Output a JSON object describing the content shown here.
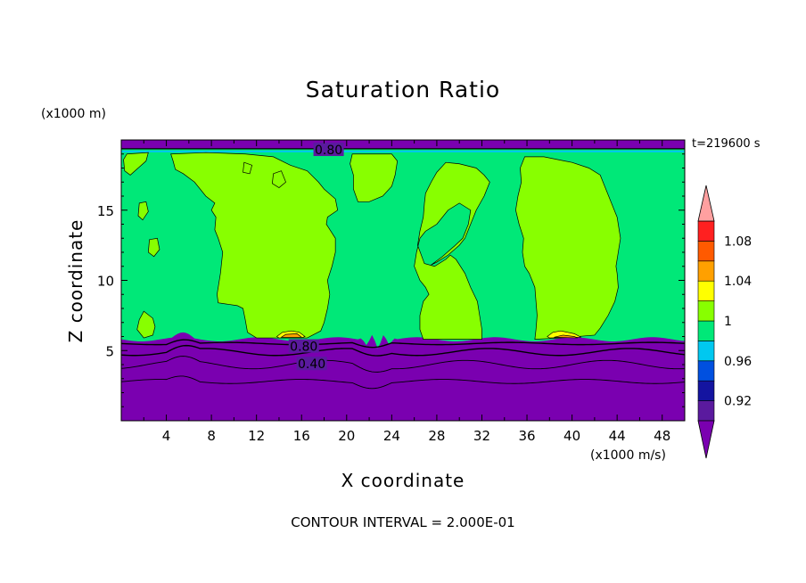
{
  "chart_data": {
    "type": "heatmap",
    "title": "Saturation Ratio",
    "xlabel": "X coordinate",
    "ylabel": "Z coordinate",
    "x_unit": "(x1000 m/s)",
    "y_unit": "(x1000 m)",
    "time_label": "t=219600 s",
    "footer": "CONTOUR INTERVAL = 2.000E-01",
    "xlim": [
      0,
      50
    ],
    "ylim": [
      0,
      20
    ],
    "x_ticks": [
      4,
      8,
      12,
      16,
      20,
      24,
      28,
      32,
      36,
      40,
      44,
      48
    ],
    "y_ticks": [
      5,
      10,
      15
    ],
    "colorbar": {
      "levels": [
        0.9,
        0.92,
        0.94,
        0.96,
        0.98,
        1.0,
        1.02,
        1.04,
        1.06,
        1.08,
        1.1
      ],
      "labels": [
        "0.92",
        "0.96",
        "1",
        "1.04",
        "1.08"
      ],
      "label_values": [
        0.92,
        0.96,
        1.0,
        1.04,
        1.08
      ],
      "colors": [
        "#5a1a9e",
        "#1414a0",
        "#0050e0",
        "#00c8f0",
        "#00e878",
        "#88ff00",
        "#ffff00",
        "#ffa000",
        "#ff5a00",
        "#ff2020"
      ],
      "under_color": "#7a00b0",
      "over_color": "#ffa0a0"
    },
    "contour_labels": [
      {
        "text": "0.80",
        "x": 18.4,
        "z": 19.3
      },
      {
        "text": "0.80",
        "x": 16.2,
        "z": 5.3
      },
      {
        "text": "0.40",
        "x": 16.9,
        "z": 4.05
      }
    ],
    "bands": {
      "purple_top": 5.8,
      "top_strip_bottom": 19.5
    },
    "regions": [
      {
        "level": 1.0,
        "poly": [
          [
            4.4,
            19.0
          ],
          [
            7.5,
            19.1
          ],
          [
            11.0,
            19.0
          ],
          [
            13.5,
            18.8
          ],
          [
            15.0,
            18.2
          ],
          [
            16.5,
            17.8
          ],
          [
            17.5,
            17.0
          ],
          [
            18.0,
            16.5
          ],
          [
            19.0,
            15.8
          ],
          [
            19.2,
            15.0
          ],
          [
            18.3,
            14.5
          ],
          [
            18.2,
            14.0
          ],
          [
            19.0,
            13.0
          ],
          [
            19.0,
            12.0
          ],
          [
            18.7,
            11.0
          ],
          [
            18.3,
            10.0
          ],
          [
            18.5,
            9.0
          ],
          [
            18.3,
            8.0
          ],
          [
            18.0,
            7.0
          ],
          [
            17.7,
            6.4
          ],
          [
            16.5,
            5.9
          ],
          [
            12.0,
            5.9
          ],
          [
            11.2,
            6.3
          ],
          [
            11.0,
            7.2
          ],
          [
            10.8,
            8.0
          ],
          [
            10.3,
            8.2
          ],
          [
            8.6,
            8.4
          ],
          [
            8.5,
            9.0
          ],
          [
            8.8,
            10.5
          ],
          [
            9.0,
            12.0
          ],
          [
            8.6,
            13.0
          ],
          [
            8.3,
            13.6
          ],
          [
            8.4,
            14.5
          ],
          [
            8.0,
            15.0
          ],
          [
            8.3,
            15.5
          ],
          [
            7.5,
            16.0
          ],
          [
            6.5,
            17.0
          ],
          [
            5.5,
            17.6
          ],
          [
            4.8,
            17.9
          ],
          [
            4.6,
            18.5
          ]
        ]
      },
      {
        "level": 1.0,
        "poly": [
          [
            20.5,
            19.0
          ],
          [
            24.0,
            19.0
          ],
          [
            24.5,
            18.5
          ],
          [
            24.3,
            17.5
          ],
          [
            24.0,
            16.7
          ],
          [
            23.2,
            16.0
          ],
          [
            22.0,
            15.6
          ],
          [
            21.0,
            15.6
          ],
          [
            20.6,
            16.5
          ],
          [
            20.6,
            17.5
          ],
          [
            20.3,
            18.3
          ]
        ]
      },
      {
        "level": 1.0,
        "poly": [
          [
            28.8,
            18.4
          ],
          [
            30.0,
            18.3
          ],
          [
            31.5,
            18.0
          ],
          [
            32.2,
            17.5
          ],
          [
            32.7,
            17.0
          ],
          [
            32.2,
            16.0
          ],
          [
            31.5,
            15.0
          ],
          [
            31.0,
            14.0
          ],
          [
            30.5,
            13.0
          ],
          [
            30.0,
            12.5
          ],
          [
            29.0,
            11.8
          ],
          [
            28.0,
            11.3
          ],
          [
            27.5,
            11.1
          ],
          [
            28.5,
            11.7
          ],
          [
            29.5,
            12.4
          ],
          [
            30.3,
            13.0
          ],
          [
            30.8,
            14.0
          ],
          [
            31.0,
            15.0
          ],
          [
            30.0,
            15.5
          ],
          [
            29.0,
            15.0
          ],
          [
            28.0,
            14.0
          ],
          [
            27.0,
            13.5
          ],
          [
            26.5,
            13.0
          ],
          [
            26.2,
            12.0
          ],
          [
            26.0,
            11.0
          ],
          [
            26.5,
            10.0
          ],
          [
            27.0,
            9.5
          ],
          [
            27.3,
            9.0
          ],
          [
            26.8,
            8.5
          ],
          [
            26.5,
            7.5
          ],
          [
            26.5,
            6.5
          ],
          [
            26.8,
            5.8
          ],
          [
            32.0,
            5.8
          ],
          [
            32.0,
            6.5
          ],
          [
            31.8,
            7.5
          ],
          [
            31.6,
            8.5
          ],
          [
            31.0,
            9.5
          ],
          [
            30.5,
            10.5
          ],
          [
            29.7,
            11.5
          ],
          [
            29.2,
            11.8
          ],
          [
            28.8,
            11.5
          ],
          [
            27.8,
            11.0
          ],
          [
            26.9,
            11.2
          ],
          [
            26.3,
            12.5
          ],
          [
            26.5,
            13.5
          ],
          [
            26.8,
            14.5
          ],
          [
            26.9,
            15.5
          ],
          [
            27.0,
            16.2
          ],
          [
            27.5,
            17.0
          ],
          [
            28.0,
            17.7
          ]
        ]
      },
      {
        "level": 1.0,
        "poly": [
          [
            35.8,
            18.8
          ],
          [
            37.5,
            18.8
          ],
          [
            40.0,
            18.4
          ],
          [
            41.5,
            18.0
          ],
          [
            42.5,
            17.5
          ],
          [
            43.0,
            16.5
          ],
          [
            43.5,
            15.5
          ],
          [
            44.0,
            14.5
          ],
          [
            44.3,
            13.0
          ],
          [
            44.1,
            12.0
          ],
          [
            43.9,
            11.0
          ],
          [
            44.0,
            10.5
          ],
          [
            44.1,
            9.5
          ],
          [
            43.8,
            8.5
          ],
          [
            43.2,
            7.5
          ],
          [
            42.5,
            6.6
          ],
          [
            42.0,
            6.1
          ],
          [
            39.0,
            5.9
          ],
          [
            36.7,
            5.8
          ],
          [
            36.8,
            6.5
          ],
          [
            36.9,
            7.5
          ],
          [
            36.8,
            8.5
          ],
          [
            36.7,
            9.5
          ],
          [
            36.2,
            10.5
          ],
          [
            35.8,
            11.0
          ],
          [
            35.6,
            12.0
          ],
          [
            35.7,
            13.0
          ],
          [
            35.3,
            14.0
          ],
          [
            35.0,
            15.0
          ],
          [
            35.2,
            16.0
          ],
          [
            35.5,
            17.0
          ],
          [
            35.4,
            18.0
          ]
        ]
      },
      {
        "level": 1.0,
        "poly": [
          [
            0.5,
            19.0
          ],
          [
            2.4,
            19.1
          ],
          [
            2.2,
            18.5
          ],
          [
            1.5,
            18.0
          ],
          [
            0.8,
            17.5
          ],
          [
            0.3,
            17.8
          ],
          [
            0.2,
            18.6
          ]
        ]
      },
      {
        "level": 1.0,
        "poly": [
          [
            2.0,
            7.8
          ],
          [
            2.8,
            7.3
          ],
          [
            3.0,
            6.7
          ],
          [
            2.8,
            6.1
          ],
          [
            2.0,
            5.9
          ],
          [
            1.4,
            6.5
          ],
          [
            1.6,
            7.2
          ]
        ]
      },
      {
        "level": 1.0,
        "poly": [
          [
            1.6,
            15.5
          ],
          [
            2.2,
            15.6
          ],
          [
            2.4,
            14.9
          ],
          [
            1.9,
            14.3
          ],
          [
            1.5,
            14.6
          ]
        ]
      },
      {
        "level": 1.0,
        "poly": [
          [
            2.5,
            12.9
          ],
          [
            3.2,
            13.0
          ],
          [
            3.4,
            12.2
          ],
          [
            2.9,
            11.7
          ],
          [
            2.4,
            12.0
          ]
        ]
      },
      {
        "level": 1.0,
        "poly": [
          [
            10.9,
            18.4
          ],
          [
            11.6,
            18.2
          ],
          [
            11.4,
            17.6
          ],
          [
            10.8,
            17.7
          ]
        ]
      },
      {
        "level": 1.0,
        "poly": [
          [
            13.5,
            17.6
          ],
          [
            14.2,
            17.8
          ],
          [
            14.6,
            17.0
          ],
          [
            14.0,
            16.6
          ],
          [
            13.4,
            16.9
          ]
        ]
      },
      {
        "level": 1.02,
        "poly": [
          [
            13.8,
            6.0
          ],
          [
            14.3,
            6.3
          ],
          [
            15.1,
            6.4
          ],
          [
            15.8,
            6.3
          ],
          [
            16.3,
            6.0
          ],
          [
            16.0,
            5.9
          ],
          [
            14.0,
            5.9
          ]
        ]
      },
      {
        "level": 1.02,
        "poly": [
          [
            37.8,
            6.0
          ],
          [
            38.3,
            6.3
          ],
          [
            39.0,
            6.4
          ],
          [
            40.2,
            6.2
          ],
          [
            40.8,
            5.95
          ],
          [
            38.0,
            5.9
          ]
        ]
      },
      {
        "level": 1.04,
        "poly": [
          [
            14.2,
            5.95
          ],
          [
            14.6,
            6.15
          ],
          [
            15.6,
            6.2
          ],
          [
            16.0,
            5.95
          ]
        ]
      },
      {
        "level": 1.04,
        "poly": [
          [
            38.4,
            5.95
          ],
          [
            39.2,
            6.1
          ],
          [
            40.2,
            6.0
          ],
          [
            40.5,
            5.9
          ]
        ]
      }
    ]
  }
}
